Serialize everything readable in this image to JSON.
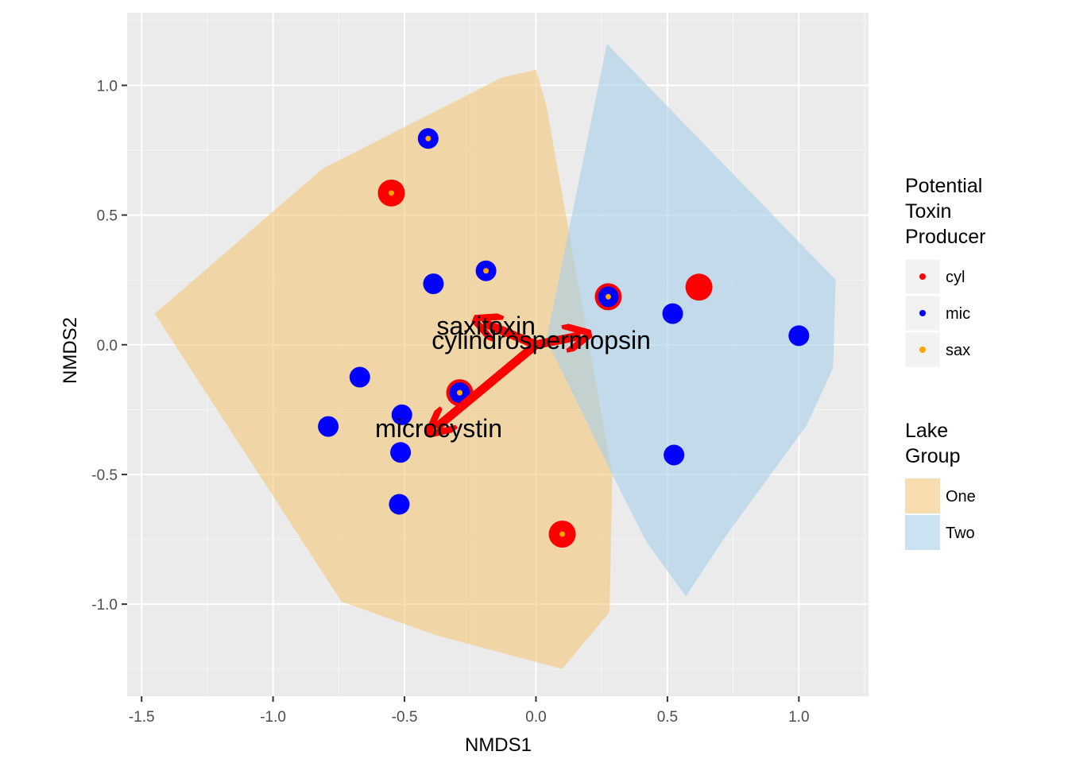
{
  "chart_data": {
    "type": "scatter",
    "title": "",
    "xlabel": "NMDS1",
    "ylabel": "NMDS2",
    "xlim": [
      -1.555,
      1.265
    ],
    "ylim": [
      -1.355,
      1.28
    ],
    "x_ticks": [
      -1.5,
      -1.0,
      -0.5,
      0.0,
      0.5,
      1.0
    ],
    "x_tick_labels": [
      "-1.5",
      "-1.0",
      "-0.5",
      "0.0",
      "0.5",
      "1.0"
    ],
    "y_ticks": [
      -1.0,
      -0.5,
      0.0,
      0.5,
      1.0
    ],
    "y_tick_labels": [
      "-1.0",
      "-0.5",
      "0.0",
      "0.5",
      "1.0"
    ],
    "grid": true,
    "hulls": [
      {
        "group": "One",
        "color": "#f3c87a",
        "points": [
          [
            -1.45,
            0.12
          ],
          [
            -0.81,
            0.68
          ],
          [
            -0.13,
            1.03
          ],
          [
            -0.0,
            1.06
          ],
          [
            0.04,
            0.92
          ],
          [
            0.29,
            -0.5
          ],
          [
            0.28,
            -1.03
          ],
          [
            0.1,
            -1.25
          ],
          [
            -0.38,
            -1.12
          ],
          [
            -0.74,
            -0.99
          ]
        ]
      },
      {
        "group": "Two",
        "color": "#a6cfea",
        "points": [
          [
            0.27,
            1.16
          ],
          [
            1.14,
            0.25
          ],
          [
            1.13,
            -0.09
          ],
          [
            1.03,
            -0.31
          ],
          [
            0.72,
            -0.74
          ],
          [
            0.57,
            -0.97
          ],
          [
            0.42,
            -0.76
          ],
          [
            0.29,
            -0.5
          ],
          [
            0.04,
            0.02
          ]
        ]
      }
    ],
    "points": [
      {
        "x": -0.41,
        "y": 0.795,
        "producers": [
          "mic",
          "sax"
        ]
      },
      {
        "x": -0.55,
        "y": 0.585,
        "producers": [
          "cyl",
          "sax"
        ]
      },
      {
        "x": -0.19,
        "y": 0.285,
        "producers": [
          "mic",
          "sax"
        ]
      },
      {
        "x": -0.39,
        "y": 0.235,
        "producers": [
          "mic"
        ]
      },
      {
        "x": 0.275,
        "y": 0.185,
        "producers": [
          "cyl",
          "mic",
          "sax"
        ]
      },
      {
        "x": 0.62,
        "y": 0.222,
        "producers": [
          "cyl"
        ]
      },
      {
        "x": 0.52,
        "y": 0.12,
        "producers": [
          "mic"
        ]
      },
      {
        "x": 1.0,
        "y": 0.035,
        "producers": [
          "mic"
        ]
      },
      {
        "x": -0.67,
        "y": -0.125,
        "producers": [
          "mic"
        ]
      },
      {
        "x": -0.29,
        "y": -0.185,
        "producers": [
          "cyl",
          "mic",
          "sax"
        ]
      },
      {
        "x": -0.79,
        "y": -0.315,
        "producers": [
          "mic"
        ]
      },
      {
        "x": -0.51,
        "y": -0.27,
        "producers": [
          "mic"
        ]
      },
      {
        "x": -0.515,
        "y": -0.415,
        "producers": [
          "mic"
        ]
      },
      {
        "x": 0.525,
        "y": -0.425,
        "producers": [
          "mic"
        ]
      },
      {
        "x": -0.52,
        "y": -0.615,
        "producers": [
          "mic"
        ]
      },
      {
        "x": 0.1,
        "y": -0.73,
        "producers": [
          "cyl",
          "sax"
        ]
      }
    ],
    "vectors": [
      {
        "label": "saxitoxin",
        "x": -0.2,
        "y": 0.085,
        "label_x": -0.19,
        "label_y": 0.065
      },
      {
        "label": "cylindrospermopsin",
        "x": 0.17,
        "y": 0.035,
        "label_x": 0.02,
        "label_y": 0.01
      },
      {
        "label": "microcystin",
        "x": -0.38,
        "y": -0.32,
        "label_x": -0.37,
        "label_y": -0.33
      }
    ],
    "vector_color": "#ff0000",
    "legends": [
      {
        "title_lines": [
          "Potential",
          "Toxin",
          "Producer"
        ],
        "type": "points",
        "entries": [
          {
            "label": "cyl",
            "color": "#ff0000"
          },
          {
            "label": "mic",
            "color": "#0000ff"
          },
          {
            "label": "sax",
            "color": "#ffa500"
          }
        ]
      },
      {
        "title_lines": [
          "Lake",
          "Group"
        ],
        "type": "fill",
        "entries": [
          {
            "label": "One",
            "color": "#f3c87a"
          },
          {
            "label": "Two",
            "color": "#a6cfea"
          }
        ]
      }
    ],
    "legend_position": "right"
  }
}
